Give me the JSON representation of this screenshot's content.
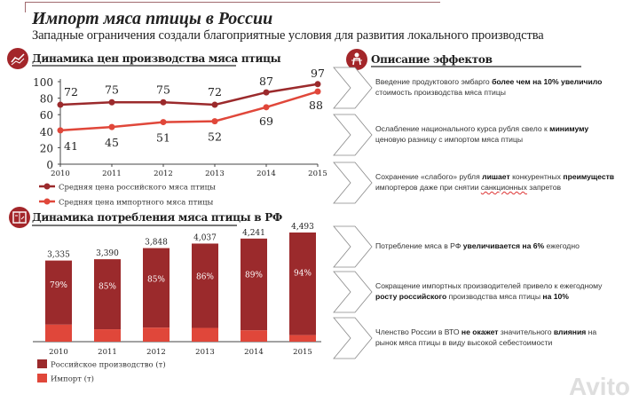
{
  "header": {
    "title": "Импорт мяса птицы в России",
    "subtitle": "Западные ограничения создали благоприятные условия для развития локального производства"
  },
  "sections": {
    "prices_title": "Динамика цен производства мяса птицы",
    "consumption_title": "Динамика потребления мяса птицы в РФ",
    "effects_title": "Описание эффектов"
  },
  "colors": {
    "dark_red": "#9b2a2c",
    "light_red": "#e0473a",
    "accent": "#a3262a"
  },
  "chart_data": [
    {
      "type": "line",
      "title": "Динамика цен производства мяса птицы",
      "categories": [
        "2010",
        "2011",
        "2012",
        "2013",
        "2014",
        "2015"
      ],
      "ylim": [
        0,
        100
      ],
      "yticks": [
        0,
        20,
        40,
        60,
        80,
        100
      ],
      "grid": false,
      "legend": "bottom",
      "series": [
        {
          "name": "Средняя цена российского мяса птицы",
          "color": "#9b2a2c",
          "values": [
            72,
            75,
            75,
            72,
            87,
            97
          ]
        },
        {
          "name": "Средняя цена импортного мяса птицы",
          "color": "#e0473a",
          "values": [
            41,
            45,
            51,
            52,
            69,
            88
          ]
        }
      ]
    },
    {
      "type": "bar",
      "stacked": true,
      "title": "Динамика потребления мяса птицы в РФ",
      "categories": [
        "2010",
        "2011",
        "2012",
        "2013",
        "2014",
        "2015"
      ],
      "totals": [
        3335,
        3390,
        3848,
        4037,
        4241,
        4493
      ],
      "total_labels": [
        "3,335",
        "3,390",
        "3,848",
        "4,037",
        "4,241",
        "4,493"
      ],
      "domestic_share_labels": [
        "79%",
        "85%",
        "85%",
        "86%",
        "89%",
        "94%"
      ],
      "domestic_share": [
        0.79,
        0.85,
        0.85,
        0.86,
        0.89,
        0.94
      ],
      "legend": "bottom",
      "series": [
        {
          "name": "Российское производство (т)",
          "color": "#9b2a2c"
        },
        {
          "name": "Импорт (т)",
          "color": "#e0473a"
        }
      ]
    }
  ],
  "effects": [
    {
      "parts": [
        {
          "t": "Введение продуктового эмбарго "
        },
        {
          "t": "более чем на 10% увеличило",
          "b": true
        },
        {
          "t": " стоимость производства мяса птицы"
        }
      ]
    },
    {
      "parts": [
        {
          "t": "Ослабление национального курса рубля свело к "
        },
        {
          "t": "минимуму",
          "b": true
        },
        {
          "t": " ценовую разницу с импортом мяса птицы"
        }
      ]
    },
    {
      "parts": [
        {
          "t": "Сохранение «слабого» рубля "
        },
        {
          "t": "лишает",
          "b": true
        },
        {
          "t": " конкурентных "
        },
        {
          "t": "преимуществ",
          "b": true
        },
        {
          "t": " импортеров даже при снятии "
        },
        {
          "t": "санкционных",
          "s": true
        },
        {
          "t": " запретов"
        }
      ]
    },
    {
      "parts": [
        {
          "t": "Потребление мяса в РФ "
        },
        {
          "t": "увеличивается на 6%",
          "b": true
        },
        {
          "t": " ежегодно"
        }
      ]
    },
    {
      "parts": [
        {
          "t": "Сокращение импортных производителей привело к ежегодному "
        },
        {
          "t": "росту российского",
          "b": true
        },
        {
          "t": " производства мяса птицы "
        },
        {
          "t": "на 10%",
          "b": true
        }
      ]
    },
    {
      "parts": [
        {
          "t": "Членство России в ВТО "
        },
        {
          "t": "не окажет",
          "b": true
        },
        {
          "t": " значительного "
        },
        {
          "t": "влияния",
          "b": true
        },
        {
          "t": " на рынок мяса птицы в виду высокой себестоимости"
        }
      ]
    }
  ],
  "watermark": "Avito"
}
